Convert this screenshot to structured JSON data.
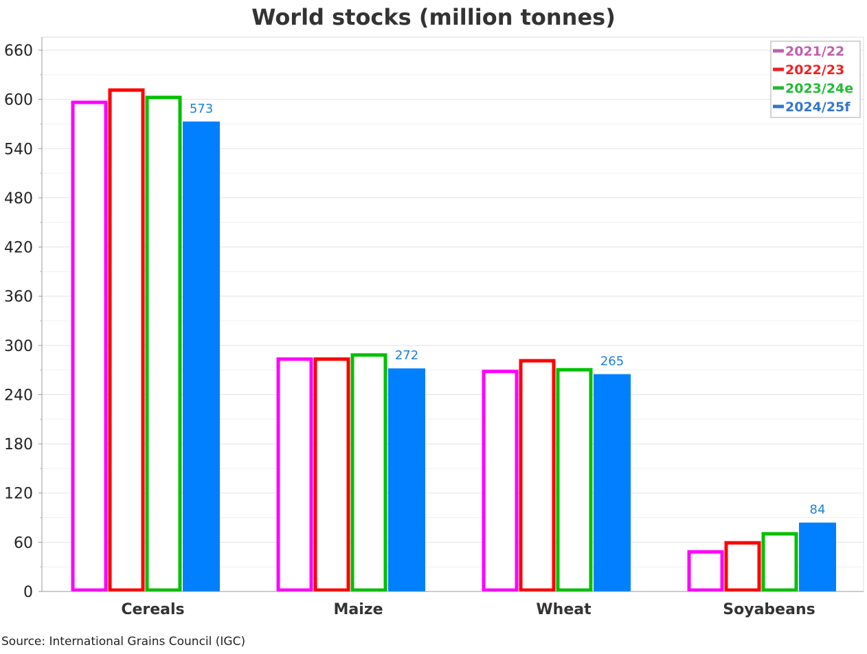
{
  "chart_data": {
    "type": "bar",
    "title": "World stocks (million tonnes)",
    "categories": [
      "Cereals",
      "Maize",
      "Wheat",
      "Soyabeans"
    ],
    "series": [
      {
        "name": "2021/22",
        "values": [
          598,
          285,
          270,
          50
        ],
        "fill": "#ffffff",
        "stroke": "#ff00ff",
        "legend_color": "#c060b0"
      },
      {
        "name": "2022/23",
        "values": [
          613,
          285,
          283,
          61
        ],
        "fill": "#ffffff",
        "stroke": "#ff0000",
        "legend_color": "#ee2222"
      },
      {
        "name": "2023/24e",
        "values": [
          604,
          290,
          272,
          72
        ],
        "fill": "#ffffff",
        "stroke": "#00c000",
        "legend_color": "#22bb33"
      },
      {
        "name": "2024/25f",
        "values": [
          573,
          272,
          265,
          84
        ],
        "fill": "#0080ff",
        "stroke": "#0080ff",
        "legend_color": "#3377cc",
        "labels": [
          "573",
          "272",
          "265",
          "84"
        ]
      }
    ],
    "ylim": [
      0,
      660
    ],
    "yticks": [
      0,
      60,
      120,
      180,
      240,
      300,
      360,
      420,
      480,
      540,
      600,
      660
    ],
    "grid": true,
    "legend_position": "top-right",
    "label_color": "#1a7fd6"
  },
  "source": "Source: International Grains Council (IGC)"
}
